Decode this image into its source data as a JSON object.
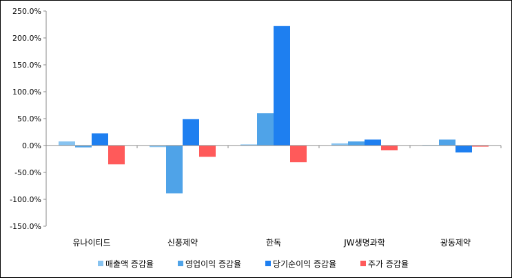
{
  "chart_data": {
    "type": "bar",
    "categories": [
      "유나이티드",
      "신풍제약",
      "한독",
      "JW생명과학",
      "광동제약"
    ],
    "series": [
      {
        "name": "매출액 증감율",
        "color": "#87c3f0",
        "values": [
          7.5,
          -3.0,
          2.0,
          4.0,
          1.0
        ]
      },
      {
        "name": "영업이익 증감율",
        "color": "#4fa3e8",
        "values": [
          -3.5,
          -89.0,
          60.0,
          7.5,
          11.0
        ]
      },
      {
        "name": "당기순이익 증감율",
        "color": "#1e7ff0",
        "values": [
          22.5,
          49.0,
          222.0,
          11.0,
          -13.0
        ]
      },
      {
        "name": "주가 증감율",
        "color": "#ff5a5a",
        "values": [
          -35.0,
          -21.0,
          -31.0,
          -9.0,
          -2.0
        ]
      }
    ],
    "ylim": [
      -150,
      250
    ],
    "yticks": [
      "250.0%",
      "200.0%",
      "150.0%",
      "100.0%",
      "50.0%",
      "0.0%",
      "-50.0%",
      "-100.0%",
      "-150.0%"
    ],
    "ytick_values": [
      250,
      200,
      150,
      100,
      50,
      0,
      -50,
      -100,
      -150
    ],
    "grid": false,
    "legend": "bottom"
  }
}
